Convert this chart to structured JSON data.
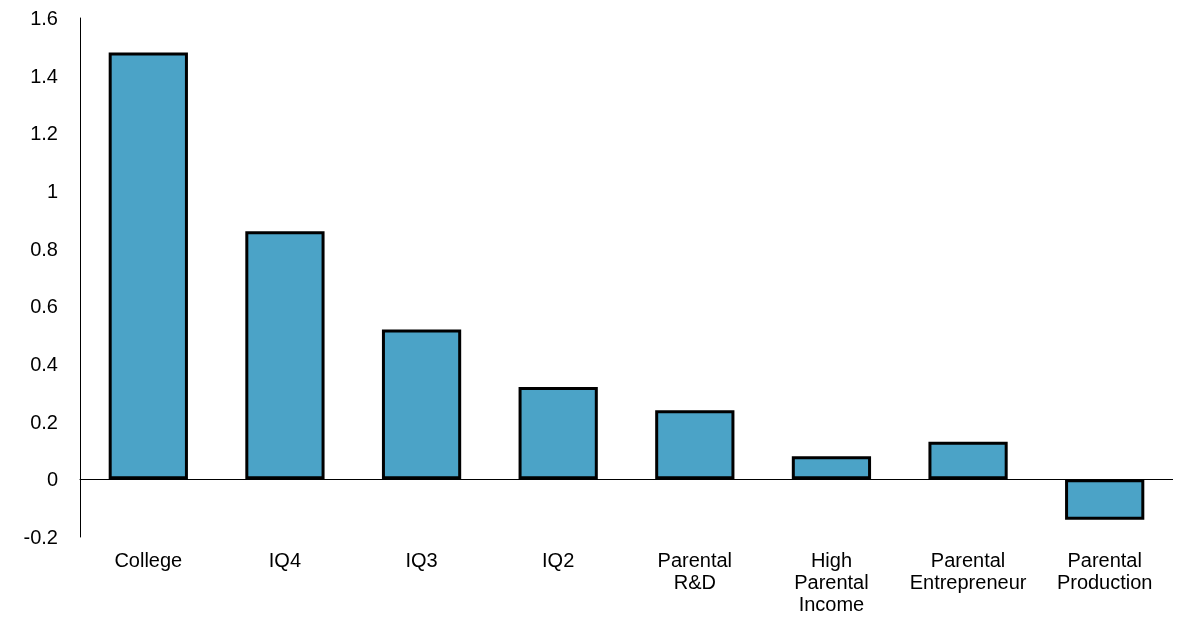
{
  "chart_data": {
    "type": "bar",
    "categories": [
      "College",
      "IQ4",
      "IQ3",
      "IQ2",
      "Parental\nR&D",
      "High\nParental\nIncome",
      "Parental\nEntrepreneur",
      "Parental\nProduction"
    ],
    "values": [
      1.48,
      0.86,
      0.52,
      0.32,
      0.24,
      0.08,
      0.13,
      -0.14
    ],
    "color": "#4ba3c7",
    "ylim": [
      -0.2,
      1.6
    ],
    "yticks": [
      -0.2,
      0,
      0.2,
      0.4,
      0.6,
      0.8,
      1,
      1.2,
      1.4,
      1.6
    ]
  }
}
